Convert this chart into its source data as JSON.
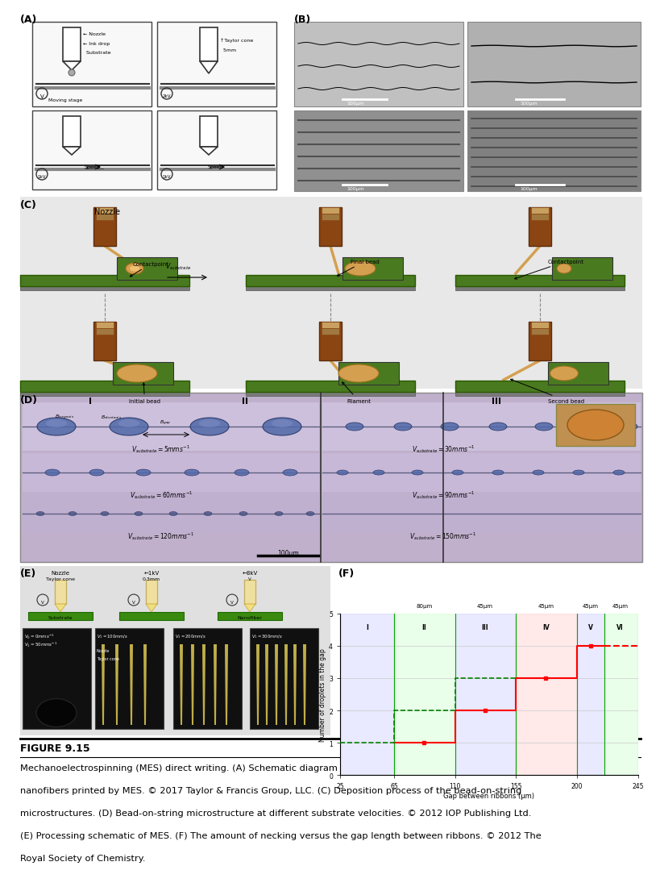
{
  "figure_title": "FIGURE 9.15",
  "caption_line1": "Mechanoelectrospinning (MES) direct writing. (A) Schematic diagram of the direct-writing process. (B) Parallel",
  "caption_line2": "nanofibers printed by MES. © 2017 Taylor & Francis Group, LLC. (C) Deposition process of the bead-on-string",
  "caption_line3": "microstructures. (D) Bead-on-string microstructure at different substrate velocities. © 2012 IOP Publishing Ltd.",
  "caption_line4": "(E) Processing schematic of MES. (F) The amount of necking versus the gap length between ribbons. © 2012 The",
  "caption_line5": "Royal Society of Chemistry.",
  "bg_color": "#ffffff",
  "fiber_color": "#d4a050",
  "substrate_color": "#4a7a20",
  "nozzle_brown": "#8B4513",
  "bead_blue": "#5068a8",
  "panel_D_bg": "#c0b0cc"
}
